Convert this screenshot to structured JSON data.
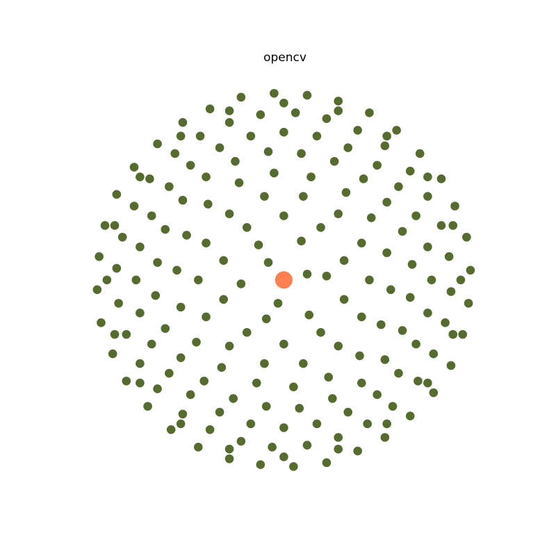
{
  "chart_data": {
    "type": "scatter",
    "title": "opencv",
    "xlim": [
      -146,
      140
    ],
    "ylim": [
      -142,
      144
    ],
    "series": [
      {
        "color": "#556b2f",
        "x": [
          96,
          94,
          88,
          81,
          70,
          58,
          44,
          28,
          12,
          -5,
          -22,
          -38,
          -52,
          -65,
          -77,
          -86,
          -92,
          -95,
          -96,
          -94,
          -88,
          -81,
          -70,
          -58,
          -44,
          -28,
          -12,
          5,
          22,
          38,
          52,
          65,
          77,
          86,
          92,
          95,
          85,
          81,
          74,
          65,
          52,
          38,
          22,
          6,
          -12,
          -28,
          -43,
          -56,
          -69,
          -77,
          -83,
          -86,
          -85,
          -81,
          -74,
          -65,
          -52,
          -38,
          -22,
          -6,
          12,
          28,
          43,
          56,
          69,
          77,
          83,
          86,
          76,
          74,
          68,
          59,
          48,
          33,
          17,
          0,
          -17,
          -33,
          -48,
          -59,
          -68,
          -74,
          -76,
          -74,
          -68,
          -59,
          -48,
          -33,
          -17,
          0,
          17,
          33,
          48,
          59,
          68,
          74,
          66,
          61,
          53,
          41,
          26,
          9,
          -8,
          -25,
          -40,
          -52,
          -61,
          -65,
          -66,
          -61,
          -53,
          -41,
          -26,
          -9,
          8,
          25,
          40,
          52,
          61,
          65,
          53,
          45,
          32,
          14,
          -5,
          -23,
          -39,
          -50,
          -55,
          -53,
          -45,
          -32,
          -14,
          5,
          23,
          39,
          50,
          55,
          91,
          87,
          74,
          53,
          28,
          0,
          -28,
          -53,
          -74,
          -87,
          -91,
          -87,
          -74,
          -53,
          -28,
          0,
          28,
          53,
          74,
          87,
          44,
          40,
          28,
          10,
          -10,
          -28,
          -40,
          -44,
          -40,
          -28,
          -10,
          10,
          28,
          40,
          31,
          19,
          0,
          -19,
          -31,
          -31,
          -19,
          0,
          19,
          31,
          22,
          9,
          -13,
          -22,
          -9,
          13,
          12,
          -8,
          -3
        ],
        "values": [
          5,
          22,
          38,
          52,
          65,
          77,
          86,
          92,
          95,
          96,
          94,
          88,
          81,
          70,
          58,
          44,
          28,
          12,
          -5,
          -22,
          -38,
          -52,
          -65,
          -77,
          -86,
          -92,
          -95,
          -96,
          -94,
          -88,
          -81,
          -70,
          -58,
          -44,
          -28,
          -12,
          12,
          28,
          43,
          56,
          69,
          77,
          83,
          86,
          85,
          81,
          74,
          65,
          52,
          38,
          22,
          6,
          -12,
          -28,
          -43,
          -56,
          -69,
          -77,
          -83,
          -86,
          -85,
          -81,
          -74,
          -65,
          -52,
          -38,
          -22,
          -6,
          0,
          17,
          33,
          48,
          59,
          68,
          74,
          76,
          74,
          68,
          59,
          48,
          33,
          17,
          0,
          -17,
          -33,
          -48,
          -59,
          -68,
          -74,
          -76,
          -74,
          -68,
          -59,
          -48,
          -33,
          -17,
          8,
          25,
          40,
          52,
          61,
          65,
          66,
          61,
          53,
          41,
          26,
          9,
          -8,
          -25,
          -40,
          -52,
          -61,
          -65,
          -66,
          -61,
          -53,
          -41,
          -26,
          -9,
          14,
          32,
          45,
          53,
          55,
          50,
          39,
          23,
          5,
          -14,
          -32,
          -45,
          -53,
          -55,
          -50,
          -39,
          -23,
          -5,
          0,
          28,
          53,
          74,
          87,
          91,
          87,
          74,
          53,
          28,
          0,
          -28,
          -53,
          -74,
          -87,
          -91,
          -87,
          -74,
          -53,
          -28,
          0,
          19,
          34,
          43,
          43,
          34,
          19,
          0,
          -19,
          -34,
          -43,
          -43,
          -34,
          -19,
          10,
          27,
          33,
          27,
          10,
          -10,
          -27,
          -33,
          -27,
          -10,
          2,
          20,
          18,
          -2,
          -20,
          -18,
          3,
          9,
          -12
        ]
      },
      {
        "color": "#ff7f50",
        "x": [
          0
        ],
        "values": [
          0
        ]
      }
    ]
  }
}
